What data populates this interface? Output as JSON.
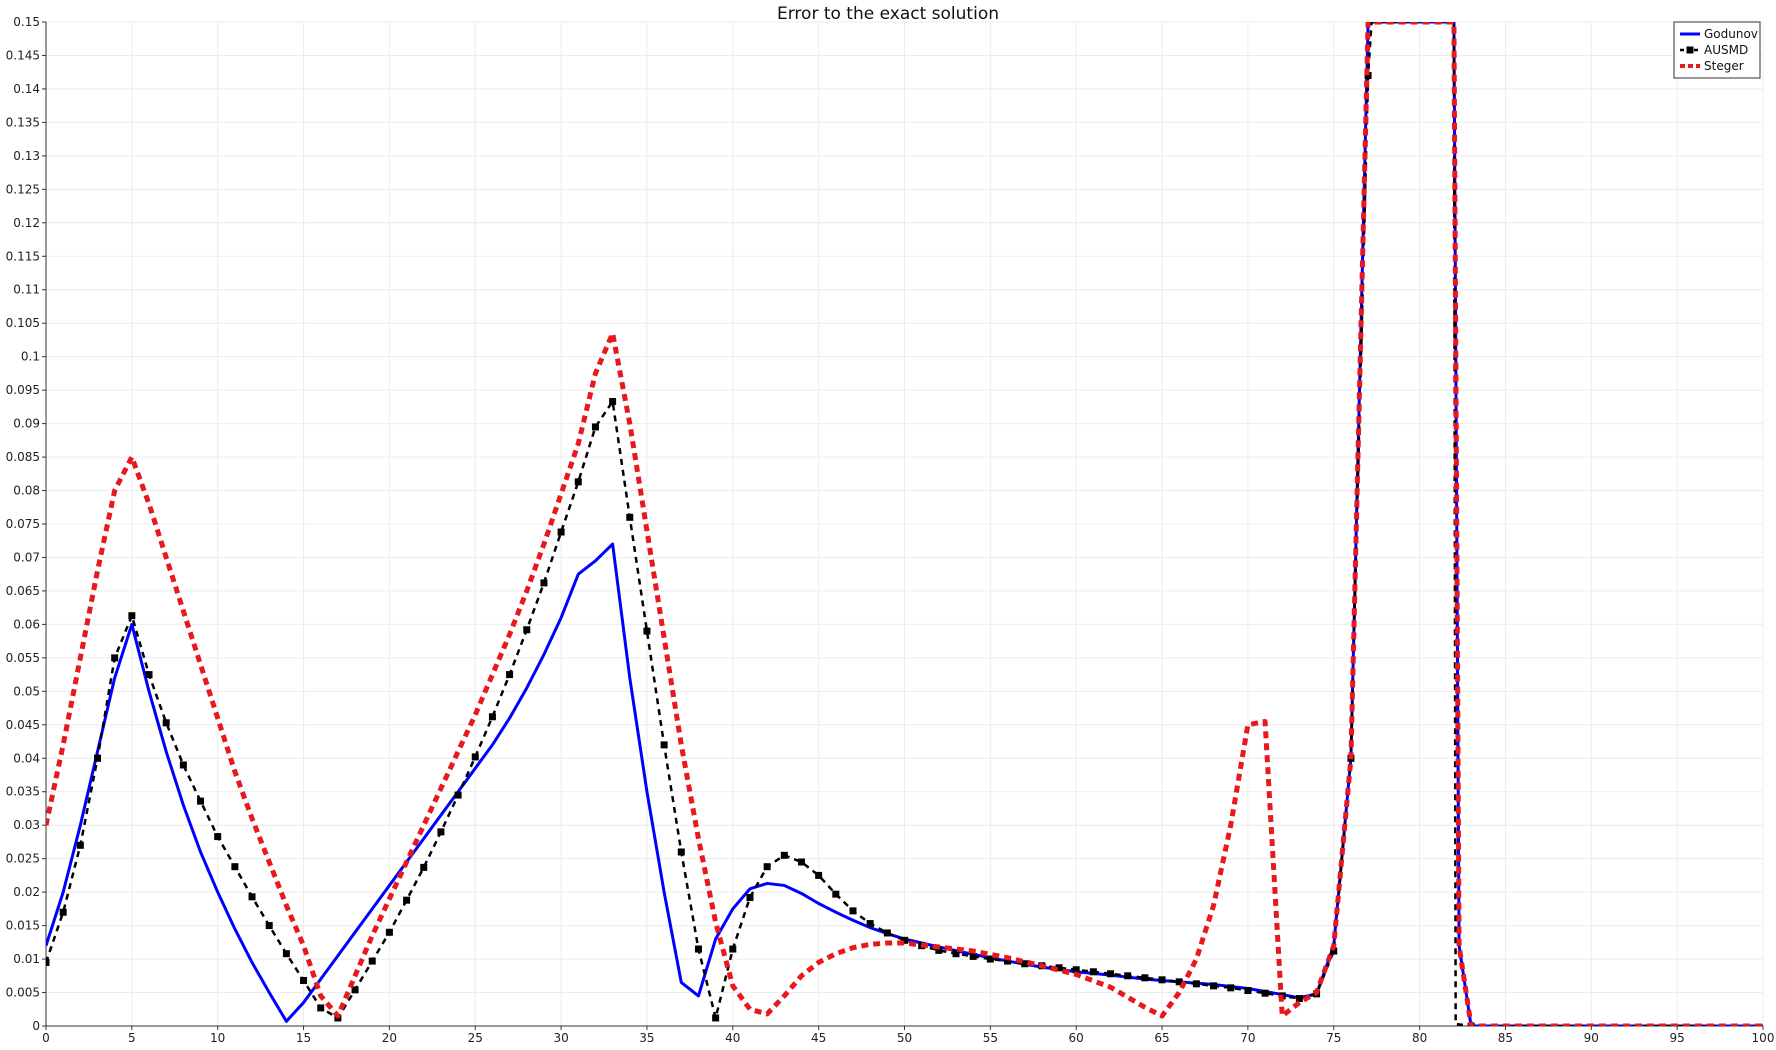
{
  "chart_data": {
    "type": "line",
    "title": "Error to the exact solution",
    "xlabel": "",
    "ylabel": "",
    "xlim": [
      0,
      100
    ],
    "ylim": [
      0,
      0.15
    ],
    "x_ticks": [
      "0",
      "5",
      "10",
      "15",
      "20",
      "25",
      "30",
      "35",
      "40",
      "45",
      "50",
      "55",
      "60",
      "65",
      "70",
      "75",
      "80",
      "85",
      "90",
      "95",
      "100"
    ],
    "y_ticks": [
      "0",
      "0.005",
      "0.01",
      "0.015",
      "0.02",
      "0.025",
      "0.03",
      "0.035",
      "0.04",
      "0.045",
      "0.05",
      "0.055",
      "0.06",
      "0.065",
      "0.07",
      "0.075",
      "0.08",
      "0.085",
      "0.09",
      "0.095",
      "0.1",
      "0.105",
      "0.11",
      "0.115",
      "0.12",
      "0.125",
      "0.13",
      "0.135",
      "0.14",
      "0.145",
      "0.15"
    ],
    "grid": true,
    "legend_position": "top-right",
    "series": [
      {
        "name": "Godunov",
        "color": "#0000ff",
        "style": "solid",
        "points": [
          [
            0,
            0.012
          ],
          [
            1,
            0.02
          ],
          [
            2,
            0.03
          ],
          [
            3,
            0.041
          ],
          [
            4,
            0.052
          ],
          [
            5,
            0.06
          ],
          [
            6,
            0.05
          ],
          [
            7,
            0.041
          ],
          [
            8,
            0.033
          ],
          [
            9,
            0.026
          ],
          [
            10,
            0.02
          ],
          [
            11,
            0.0145
          ],
          [
            12,
            0.0095
          ],
          [
            13,
            0.005
          ],
          [
            14,
            0.0007
          ],
          [
            15,
            0.0035
          ],
          [
            16,
            0.007
          ],
          [
            17,
            0.0105
          ],
          [
            18,
            0.014
          ],
          [
            19,
            0.0175
          ],
          [
            20,
            0.021
          ],
          [
            21,
            0.0245
          ],
          [
            22,
            0.028
          ],
          [
            23,
            0.0315
          ],
          [
            24,
            0.035
          ],
          [
            25,
            0.0385
          ],
          [
            26,
            0.042
          ],
          [
            27,
            0.046
          ],
          [
            28,
            0.0505
          ],
          [
            29,
            0.0555
          ],
          [
            30,
            0.061
          ],
          [
            31,
            0.0675
          ],
          [
            32,
            0.0695
          ],
          [
            33,
            0.072
          ],
          [
            34,
            0.052
          ],
          [
            35,
            0.035
          ],
          [
            36,
            0.02
          ],
          [
            37,
            0.0065
          ],
          [
            38,
            0.0045
          ],
          [
            39,
            0.013
          ],
          [
            40,
            0.0175
          ],
          [
            41,
            0.0205
          ],
          [
            42,
            0.0213
          ],
          [
            43,
            0.021
          ],
          [
            44,
            0.0198
          ],
          [
            45,
            0.0183
          ],
          [
            46,
            0.017
          ],
          [
            47,
            0.0158
          ],
          [
            48,
            0.0147
          ],
          [
            49,
            0.0138
          ],
          [
            50,
            0.013
          ],
          [
            52,
            0.0118
          ],
          [
            54,
            0.0107
          ],
          [
            56,
            0.0097
          ],
          [
            58,
            0.0088
          ],
          [
            60,
            0.0081
          ],
          [
            62,
            0.0076
          ],
          [
            64,
            0.007
          ],
          [
            66,
            0.0066
          ],
          [
            68,
            0.0062
          ],
          [
            70,
            0.0056
          ],
          [
            72,
            0.0047
          ],
          [
            73,
            0.0042
          ],
          [
            74,
            0.0048
          ],
          [
            75,
            0.012
          ],
          [
            76,
            0.04
          ],
          [
            77,
            0.15
          ],
          [
            82,
            0.15
          ],
          [
            82.3,
            0.012
          ],
          [
            83,
            0
          ],
          [
            100,
            0
          ]
        ]
      },
      {
        "name": "AUSMD",
        "color": "#000000",
        "style": "dashed-square-markers",
        "points": [
          [
            0,
            0.0095
          ],
          [
            1,
            0.017
          ],
          [
            2,
            0.027
          ],
          [
            3,
            0.04
          ],
          [
            4,
            0.055
          ],
          [
            5,
            0.0613
          ],
          [
            6,
            0.0525
          ],
          [
            7,
            0.0453
          ],
          [
            8,
            0.039
          ],
          [
            9,
            0.0336
          ],
          [
            10,
            0.0283
          ],
          [
            11,
            0.0238
          ],
          [
            12,
            0.0193
          ],
          [
            13,
            0.015
          ],
          [
            14,
            0.0108
          ],
          [
            15,
            0.0068
          ],
          [
            16,
            0.0027
          ],
          [
            17,
            0.0012
          ],
          [
            18,
            0.0054
          ],
          [
            19,
            0.0097
          ],
          [
            20,
            0.014
          ],
          [
            21,
            0.0188
          ],
          [
            22,
            0.0237
          ],
          [
            23,
            0.029
          ],
          [
            24,
            0.0345
          ],
          [
            25,
            0.0402
          ],
          [
            26,
            0.0462
          ],
          [
            27,
            0.0525
          ],
          [
            28,
            0.0592
          ],
          [
            29,
            0.0662
          ],
          [
            30,
            0.0738
          ],
          [
            31,
            0.0813
          ],
          [
            32,
            0.0895
          ],
          [
            33,
            0.0933
          ],
          [
            34,
            0.076
          ],
          [
            35,
            0.059
          ],
          [
            36,
            0.042
          ],
          [
            37,
            0.026
          ],
          [
            38,
            0.0115
          ],
          [
            39,
            0.0012
          ],
          [
            40,
            0.0115
          ],
          [
            41,
            0.0192
          ],
          [
            42,
            0.0238
          ],
          [
            43,
            0.0255
          ],
          [
            44,
            0.0245
          ],
          [
            45,
            0.0225
          ],
          [
            46,
            0.0197
          ],
          [
            47,
            0.0172
          ],
          [
            48,
            0.0153
          ],
          [
            49,
            0.0139
          ],
          [
            50,
            0.0128
          ],
          [
            51,
            0.012
          ],
          [
            52,
            0.0113
          ],
          [
            53,
            0.0108
          ],
          [
            54,
            0.0104
          ],
          [
            55,
            0.01
          ],
          [
            56,
            0.0097
          ],
          [
            57,
            0.0093
          ],
          [
            58,
            0.009
          ],
          [
            59,
            0.0087
          ],
          [
            60,
            0.0084
          ],
          [
            61,
            0.0081
          ],
          [
            62,
            0.0078
          ],
          [
            63,
            0.0075
          ],
          [
            64,
            0.0072
          ],
          [
            65,
            0.0069
          ],
          [
            66,
            0.0066
          ],
          [
            67,
            0.0063
          ],
          [
            68,
            0.006
          ],
          [
            69,
            0.0057
          ],
          [
            70,
            0.0053
          ],
          [
            71,
            0.0049
          ],
          [
            72,
            0.0045
          ],
          [
            73,
            0.0041
          ],
          [
            74,
            0.0048
          ],
          [
            75,
            0.0112
          ],
          [
            76,
            0.04
          ],
          [
            77,
            0.142
          ],
          [
            77.2,
            0.15
          ],
          [
            82,
            0.15
          ],
          [
            82.1,
            0.0003
          ],
          [
            83,
            0
          ],
          [
            100,
            0
          ]
        ]
      },
      {
        "name": "Steger",
        "color": "#e8181c",
        "style": "dashed",
        "points": [
          [
            0,
            0.03
          ],
          [
            1,
            0.042
          ],
          [
            2,
            0.055
          ],
          [
            3,
            0.068
          ],
          [
            4,
            0.08
          ],
          [
            5,
            0.085
          ],
          [
            6,
            0.078
          ],
          [
            7,
            0.07
          ],
          [
            8,
            0.062
          ],
          [
            9,
            0.054
          ],
          [
            10,
            0.046
          ],
          [
            11,
            0.038
          ],
          [
            12,
            0.031
          ],
          [
            13,
            0.0245
          ],
          [
            14,
            0.018
          ],
          [
            15,
            0.012
          ],
          [
            16,
            0.0045
          ],
          [
            17,
            0.0015
          ],
          [
            18,
            0.0075
          ],
          [
            19,
            0.0135
          ],
          [
            20,
            0.019
          ],
          [
            21,
            0.0245
          ],
          [
            22,
            0.03
          ],
          [
            23,
            0.0355
          ],
          [
            24,
            0.041
          ],
          [
            25,
            0.0465
          ],
          [
            26,
            0.0525
          ],
          [
            27,
            0.0585
          ],
          [
            28,
            0.065
          ],
          [
            29,
            0.072
          ],
          [
            30,
            0.0795
          ],
          [
            31,
            0.087
          ],
          [
            32,
            0.0975
          ],
          [
            33,
            0.1035
          ],
          [
            34,
            0.09
          ],
          [
            35,
            0.074
          ],
          [
            36,
            0.058
          ],
          [
            37,
            0.042
          ],
          [
            38,
            0.028
          ],
          [
            39,
            0.0155
          ],
          [
            40,
            0.006
          ],
          [
            41,
            0.0025
          ],
          [
            42,
            0.0018
          ],
          [
            43,
            0.0045
          ],
          [
            44,
            0.0075
          ],
          [
            45,
            0.0095
          ],
          [
            46,
            0.0108
          ],
          [
            47,
            0.0117
          ],
          [
            48,
            0.0122
          ],
          [
            49,
            0.0124
          ],
          [
            50,
            0.0124
          ],
          [
            52,
            0.0118
          ],
          [
            54,
            0.0112
          ],
          [
            56,
            0.0102
          ],
          [
            58,
            0.009
          ],
          [
            60,
            0.0077
          ],
          [
            62,
            0.0058
          ],
          [
            64,
            0.0028
          ],
          [
            65,
            0.0015
          ],
          [
            66,
            0.005
          ],
          [
            67,
            0.01
          ],
          [
            68,
            0.018
          ],
          [
            69,
            0.03
          ],
          [
            70,
            0.045
          ],
          [
            71,
            0.0455
          ],
          [
            72,
            0.0015
          ],
          [
            73,
            0.0035
          ],
          [
            74,
            0.005
          ],
          [
            75,
            0.012
          ],
          [
            76,
            0.04
          ],
          [
            77,
            0.15
          ],
          [
            82,
            0.15
          ],
          [
            82.3,
            0.012
          ],
          [
            83,
            0
          ],
          [
            100,
            0
          ]
        ]
      }
    ]
  }
}
